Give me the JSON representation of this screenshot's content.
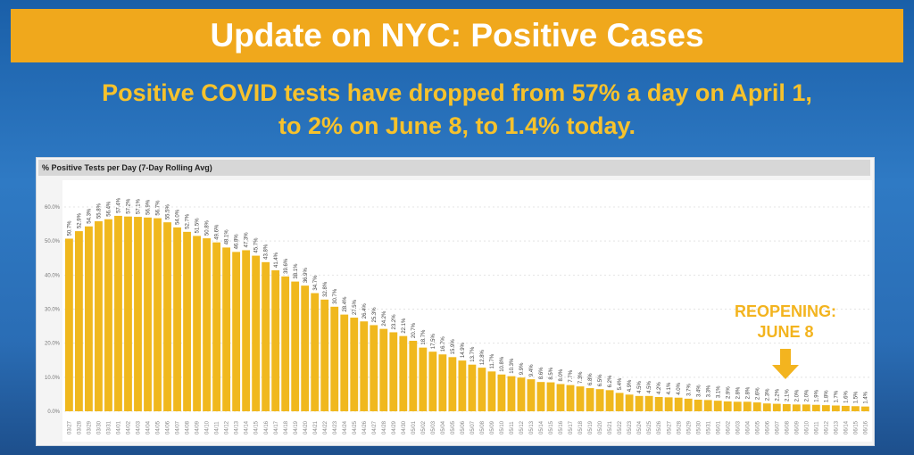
{
  "header": {
    "title": "Update on NYC: Positive Cases",
    "subtitle_line1": "Positive COVID tests have dropped from 57% a day on April 1,",
    "subtitle_line2": "to 2% on June 8, to 1.4% today."
  },
  "annotation": {
    "line1": "REOPENING:",
    "line2": "JUNE 8",
    "icon": "arrow-down-icon"
  },
  "colors": {
    "bar": "#f0b81e",
    "banner": "#f0a81c",
    "subtitle": "#f7c22c"
  },
  "chart_data": {
    "type": "bar",
    "title": "% Positive Tests per Day (7-Day Rolling Avg)",
    "xlabel": "",
    "ylabel": "",
    "ylim": [
      0,
      60
    ],
    "yticks": [
      "0.0%",
      "10.0%",
      "20.0%",
      "30.0%",
      "40.0%",
      "50.0%",
      "60.0%"
    ],
    "grid": true,
    "categories": [
      "03/27",
      "03/28",
      "03/29",
      "03/30",
      "03/31",
      "04/01",
      "04/02",
      "04/03",
      "04/04",
      "04/05",
      "04/06",
      "04/07",
      "04/08",
      "04/09",
      "04/10",
      "04/11",
      "04/12",
      "04/13",
      "04/14",
      "04/15",
      "04/16",
      "04/17",
      "04/18",
      "04/19",
      "04/20",
      "04/21",
      "04/22",
      "04/23",
      "04/24",
      "04/25",
      "04/26",
      "04/27",
      "04/28",
      "04/29",
      "04/30",
      "05/01",
      "05/02",
      "05/03",
      "05/04",
      "05/05",
      "05/06",
      "05/07",
      "05/08",
      "05/09",
      "05/10",
      "05/11",
      "05/12",
      "05/13",
      "05/14",
      "05/15",
      "05/16",
      "05/17",
      "05/18",
      "05/19",
      "05/20",
      "05/21",
      "05/22",
      "05/23",
      "05/24",
      "05/25",
      "05/26",
      "05/27",
      "05/28",
      "05/29",
      "05/30",
      "05/31",
      "06/01",
      "06/02",
      "06/03",
      "06/04",
      "06/05",
      "06/06",
      "06/07",
      "06/08",
      "06/09",
      "06/10",
      "06/11",
      "06/12",
      "06/13",
      "06/14",
      "06/15",
      "06/16"
    ],
    "values": [
      50.7,
      52.9,
      54.3,
      55.8,
      56.4,
      57.4,
      57.2,
      57.1,
      56.9,
      56.7,
      55.5,
      54.0,
      52.7,
      51.5,
      50.8,
      49.6,
      48.1,
      46.8,
      47.3,
      45.7,
      43.8,
      41.4,
      39.6,
      38.1,
      36.9,
      34.7,
      32.8,
      30.7,
      28.4,
      27.5,
      26.4,
      25.3,
      24.2,
      23.2,
      22.1,
      20.7,
      18.7,
      17.5,
      16.7,
      15.9,
      14.9,
      13.7,
      12.8,
      11.7,
      10.8,
      10.3,
      9.9,
      9.4,
      8.6,
      8.5,
      8.0,
      7.7,
      7.3,
      6.8,
      6.5,
      6.2,
      5.4,
      4.9,
      4.5,
      4.5,
      4.2,
      4.1,
      4.0,
      3.7,
      3.4,
      3.3,
      3.1,
      2.9,
      2.8,
      2.8,
      2.6,
      2.3,
      2.2,
      2.1,
      2.0,
      2.0,
      1.9,
      1.8,
      1.7,
      1.6,
      1.5,
      1.4
    ]
  }
}
